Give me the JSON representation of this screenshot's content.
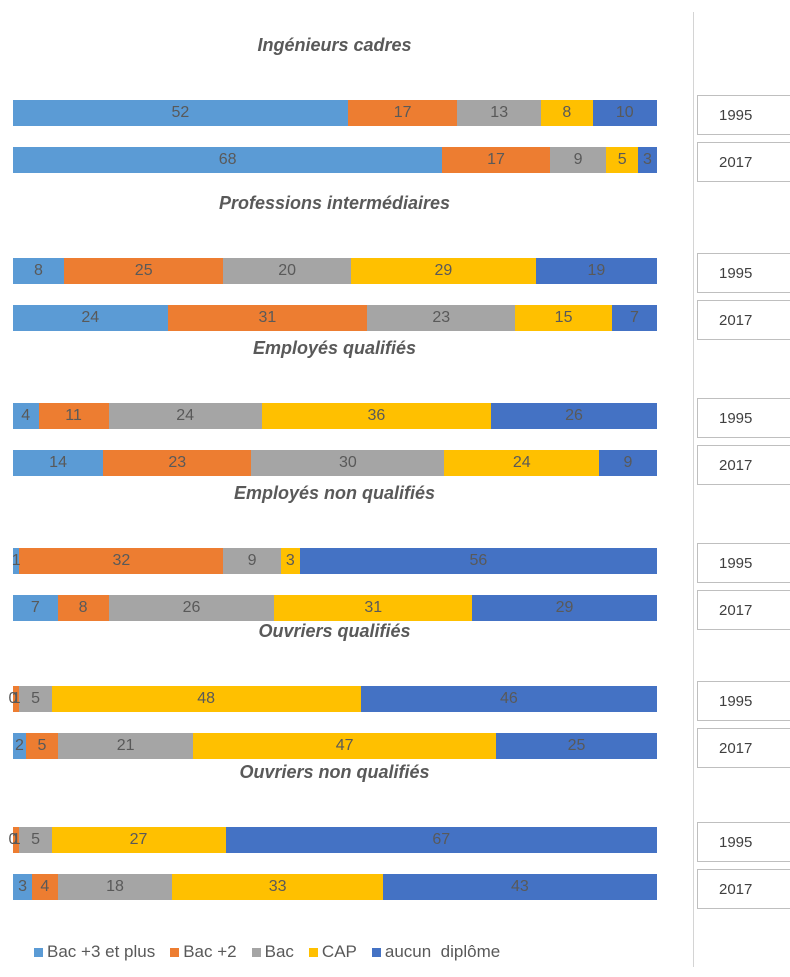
{
  "chart_data": {
    "type": "bar",
    "orientation": "horizontal",
    "stacked": true,
    "legend_position": "bottom",
    "series_names": [
      "Bac +3 et plus",
      "Bac +2",
      "Bac",
      "CAP",
      "aucun  diplôme"
    ],
    "colors": [
      "#5b9bd5",
      "#ed7d31",
      "#a5a5a5",
      "#ffc000",
      "#4472c4"
    ],
    "groups": [
      {
        "title": "Ingénieurs cadres",
        "rows": [
          {
            "year": "1995",
            "values": [
              52,
              17,
              13,
              8,
              10
            ]
          },
          {
            "year": "2017",
            "values": [
              68,
              17,
              9,
              5,
              3
            ]
          }
        ]
      },
      {
        "title": "Professions intermédiaires",
        "rows": [
          {
            "year": "1995",
            "values": [
              8,
              25,
              20,
              29,
              19
            ]
          },
          {
            "year": "2017",
            "values": [
              24,
              31,
              23,
              15,
              7
            ]
          }
        ]
      },
      {
        "title": "Employés  qualifiés",
        "rows": [
          {
            "year": "1995",
            "values": [
              4,
              11,
              24,
              36,
              26
            ]
          },
          {
            "year": "2017",
            "values": [
              14,
              23,
              30,
              24,
              9
            ]
          }
        ]
      },
      {
        "title": "Employés non qualifiés",
        "rows": [
          {
            "year": "1995",
            "values": [
              1,
              32,
              9,
              3,
              56
            ]
          },
          {
            "year": "2017",
            "values": [
              7,
              8,
              26,
              31,
              29
            ]
          }
        ]
      },
      {
        "title": "Ouvriers qualifiés",
        "rows": [
          {
            "year": "1995",
            "values": [
              0,
              1,
              5,
              48,
              46
            ]
          },
          {
            "year": "2017",
            "values": [
              2,
              5,
              21,
              47,
              25
            ]
          }
        ]
      },
      {
        "title": "Ouvriers non qualifiés",
        "rows": [
          {
            "year": "1995",
            "values": [
              0,
              1,
              5,
              27,
              67
            ]
          },
          {
            "year": "2017",
            "values": [
              3,
              4,
              18,
              33,
              43
            ]
          }
        ]
      }
    ]
  }
}
